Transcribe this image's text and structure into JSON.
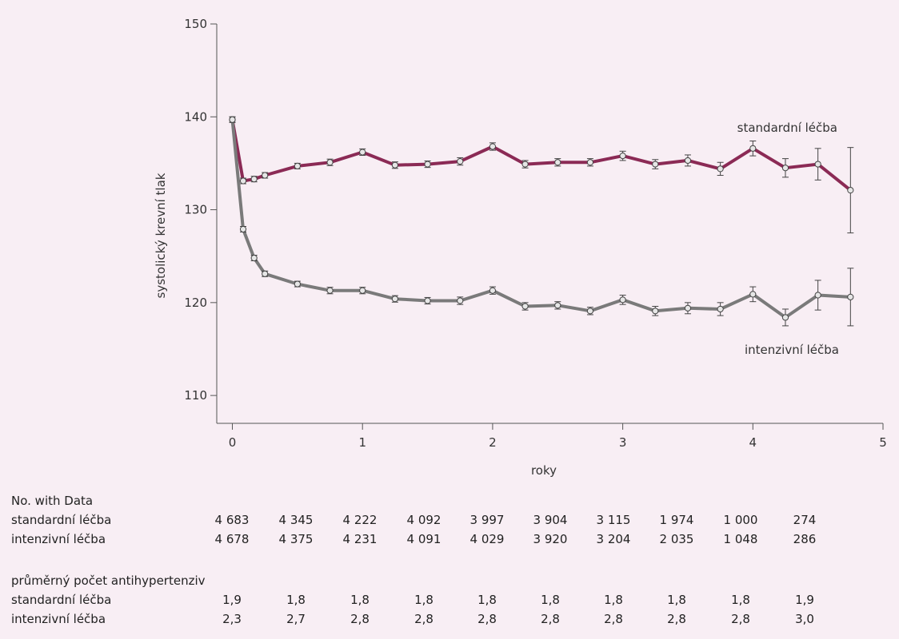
{
  "chart_data": {
    "type": "line",
    "xlabel": "roky",
    "ylabel": "systolický krevní tlak",
    "xlim": [
      -0.12,
      5
    ],
    "ylim": [
      107,
      150
    ],
    "x_ticks": [
      "0",
      "1",
      "2",
      "3",
      "4",
      "5"
    ],
    "y_ticks": [
      "110",
      "120",
      "130",
      "140",
      "150"
    ],
    "series": [
      {
        "name": "standardní léčba",
        "color": "#8b2a55",
        "x": [
          0,
          0.083,
          0.167,
          0.25,
          0.5,
          0.75,
          1.0,
          1.25,
          1.5,
          1.75,
          2.0,
          2.25,
          2.5,
          2.75,
          3.0,
          3.25,
          3.5,
          3.75,
          4.0,
          4.25,
          4.5,
          4.75
        ],
        "y": [
          139.7,
          133.1,
          133.3,
          133.7,
          134.7,
          135.1,
          136.2,
          134.8,
          134.9,
          135.2,
          136.8,
          134.9,
          135.1,
          135.1,
          135.8,
          134.9,
          135.3,
          134.4,
          136.6,
          134.5,
          134.9,
          132.1
        ],
        "err": [
          0.3,
          0.3,
          0.3,
          0.3,
          0.3,
          0.35,
          0.35,
          0.35,
          0.35,
          0.4,
          0.4,
          0.4,
          0.4,
          0.4,
          0.5,
          0.5,
          0.6,
          0.7,
          0.8,
          1.0,
          1.7,
          4.6
        ]
      },
      {
        "name": "intenzivní léčba",
        "color": "#7a7a7a",
        "x": [
          0,
          0.083,
          0.167,
          0.25,
          0.5,
          0.75,
          1.0,
          1.25,
          1.5,
          1.75,
          2.0,
          2.25,
          2.5,
          2.75,
          3.0,
          3.25,
          3.5,
          3.75,
          4.0,
          4.25,
          4.5,
          4.75
        ],
        "y": [
          139.7,
          127.9,
          124.8,
          123.1,
          122.0,
          121.3,
          121.3,
          120.4,
          120.2,
          120.2,
          121.3,
          119.6,
          119.7,
          119.1,
          120.3,
          119.1,
          119.4,
          119.3,
          120.9,
          118.4,
          120.8,
          120.6
        ],
        "err": [
          0.3,
          0.3,
          0.3,
          0.3,
          0.3,
          0.35,
          0.35,
          0.35,
          0.35,
          0.4,
          0.4,
          0.4,
          0.4,
          0.4,
          0.5,
          0.5,
          0.6,
          0.7,
          0.8,
          0.9,
          1.6,
          3.1
        ]
      }
    ]
  },
  "table": {
    "counts_title": "No. with Data",
    "count_rows": [
      {
        "label": "standardní léčba",
        "values": [
          "4 683",
          "4 345",
          "4 222",
          "4 092",
          "3 997",
          "3 904",
          "3 115",
          "1 974",
          "1 000",
          "274"
        ]
      },
      {
        "label": "intenzivní léčba",
        "values": [
          "4 678",
          "4 375",
          "4 231",
          "4 091",
          "4 029",
          "3 920",
          "3 204",
          "2 035",
          "1 048",
          "286"
        ]
      }
    ],
    "meds_title": "průměrný počet antihypertenziv",
    "med_rows": [
      {
        "label": "standardní léčba",
        "values": [
          "1,9",
          "1,8",
          "1,8",
          "1,8",
          "1,8",
          "1,8",
          "1,8",
          "1,8",
          "1,8",
          "1,9"
        ]
      },
      {
        "label": "intenzivní léčba",
        "values": [
          "2,3",
          "2,7",
          "2,8",
          "2,8",
          "2,8",
          "2,8",
          "2,8",
          "2,8",
          "2,8",
          "3,0"
        ]
      }
    ]
  }
}
